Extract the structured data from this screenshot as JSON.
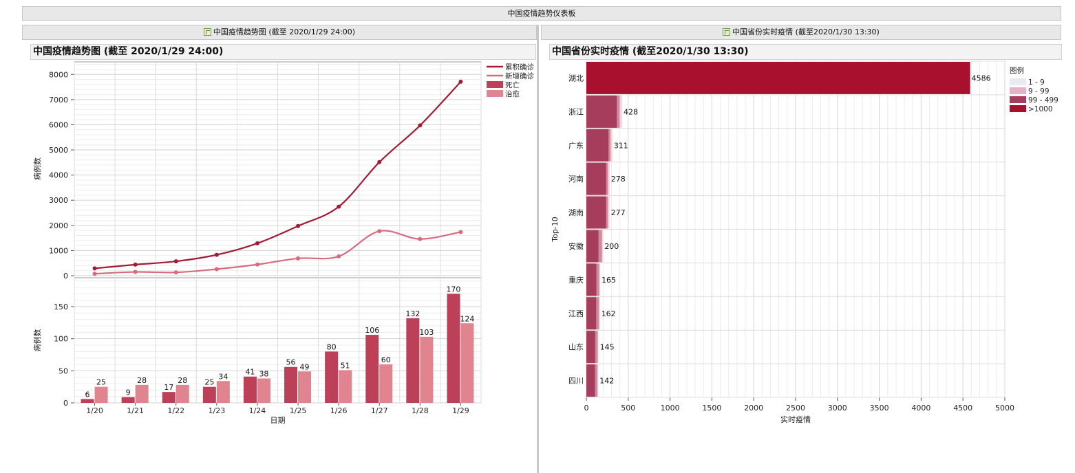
{
  "dashboard": {
    "title": "中国疫情趋势仪表板"
  },
  "left_panel": {
    "tab_label": "中国疫情趋势图 (截至 2020/1/29 24:00)",
    "chart_title": "中国疫情趋势图 (截至 2020/1/29 24:00)"
  },
  "right_panel": {
    "tab_label": "中国省份实时疫情 (截至2020/1/30 13:30)",
    "chart_title": "中国省份实时疫情 (截至2020/1/30 13:30)"
  },
  "chart_data": [
    {
      "type": "line",
      "title": "中国疫情趋势图 (截至 2020/1/29 24:00)",
      "x": [
        "1/20",
        "1/21",
        "1/22",
        "1/23",
        "1/24",
        "1/25",
        "1/26",
        "1/27",
        "1/28",
        "1/29"
      ],
      "xlabel": "日期",
      "ylabel": "病例数",
      "ylim": [
        0,
        8500
      ],
      "yticks": [
        0,
        1000,
        2000,
        3000,
        4000,
        5000,
        6000,
        7000,
        8000
      ],
      "series": [
        {
          "name": "累积确诊",
          "color": "#a31a35",
          "values": [
            291,
            440,
            571,
            830,
            1287,
            1975,
            2744,
            4515,
            5974,
            7711
          ]
        },
        {
          "name": "新增确诊",
          "color": "#d86a7e",
          "values": [
            77,
            149,
            131,
            259,
            444,
            688,
            769,
            1771,
            1459,
            1737
          ]
        }
      ]
    },
    {
      "type": "bar",
      "x": [
        "1/20",
        "1/21",
        "1/22",
        "1/23",
        "1/24",
        "1/25",
        "1/26",
        "1/27",
        "1/28",
        "1/29"
      ],
      "xlabel": "日期",
      "ylabel": "病例数",
      "ylim": [
        0,
        195
      ],
      "yticks": [
        0,
        50,
        100,
        150
      ],
      "series": [
        {
          "name": "死亡",
          "color": "#bd4059",
          "values": [
            6,
            9,
            17,
            25,
            41,
            56,
            80,
            106,
            132,
            170
          ]
        },
        {
          "name": "治愈",
          "color": "#e0848f",
          "values": [
            25,
            28,
            28,
            34,
            38,
            49,
            51,
            60,
            103,
            124
          ]
        }
      ]
    },
    {
      "type": "bar",
      "orientation": "horizontal",
      "title": "中国省份实时疫情 (截至2020/1/30 13:30)",
      "categories": [
        "湖北",
        "浙江",
        "广东",
        "河南",
        "湖南",
        "安徽",
        "重庆",
        "江西",
        "山东",
        "四川"
      ],
      "values": [
        4586,
        428,
        311,
        278,
        277,
        200,
        165,
        162,
        145,
        142
      ],
      "xlabel": "实时疫情",
      "ylabel": "Top-10",
      "xlim": [
        0,
        5000
      ],
      "xticks": [
        0,
        500,
        1000,
        1500,
        2000,
        2500,
        3000,
        3500,
        4000,
        4500,
        5000
      ],
      "legend_title": "图例",
      "legend": [
        {
          "name": "1 - 9",
          "color": "#e9e9f1"
        },
        {
          "name": "9 - 99",
          "color": "#e9b1c8"
        },
        {
          "name": "99 - 499",
          "color": "#a63d5d"
        },
        {
          "name": ">1000",
          "color": "#a8102e"
        }
      ]
    }
  ]
}
